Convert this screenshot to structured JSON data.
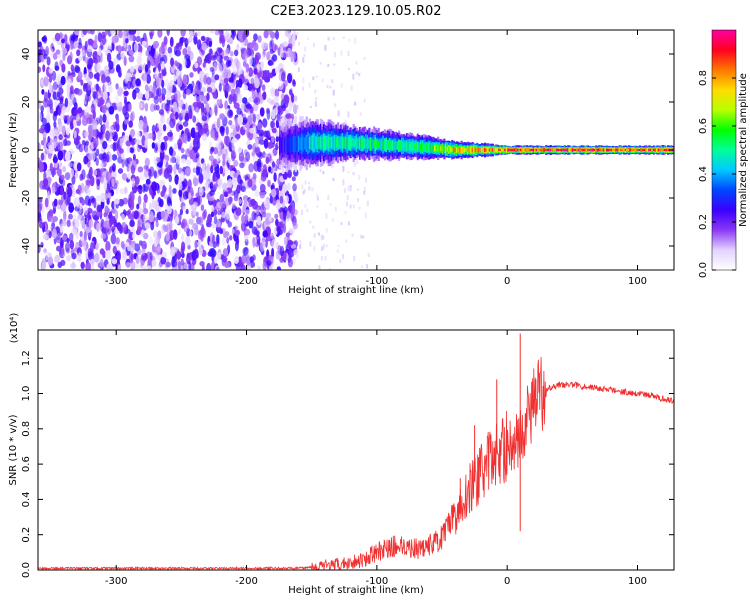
{
  "title": "C2E3.2023.129.10.05.R02",
  "chart_data": [
    {
      "type": "heatmap",
      "xlabel": "Height of straight line (km)",
      "ylabel": "Frequency (Hz)",
      "xlim": [
        -360,
        128
      ],
      "ylim": [
        -50,
        50
      ],
      "xticks": [
        -300,
        -200,
        -100,
        0,
        100
      ],
      "yticks": [
        -40,
        -20,
        0,
        20,
        40
      ],
      "colorbar": {
        "label": "Normalized spectral amplitude",
        "range": [
          0.0,
          1.0
        ],
        "ticks": [
          "0.0",
          "0.2",
          "0.4",
          "0.6",
          "0.8"
        ],
        "colors": [
          "#ffffff",
          "#e3d2ff",
          "#8a38f5",
          "#3a00ff",
          "#0046ff",
          "#00c8ff",
          "#00ff9a",
          "#00ff00",
          "#b8ff00",
          "#ffdc00",
          "#ff7800",
          "#ff0020",
          "#ff00a0"
        ]
      },
      "description_features": {
        "noise_region_x": [
          -360,
          -162
        ],
        "signal_band": [
          {
            "x": -175,
            "f_center": 2,
            "f_halfwidth": 9,
            "level": 0.22
          },
          {
            "x": -150,
            "f_center": 3,
            "f_halfwidth": 8,
            "level": 0.45
          },
          {
            "x": -120,
            "f_center": 3,
            "f_halfwidth": 6,
            "level": 0.5
          },
          {
            "x": -90,
            "f_center": 2,
            "f_halfwidth": 5,
            "level": 0.5
          },
          {
            "x": -60,
            "f_center": 1,
            "f_halfwidth": 4,
            "level": 0.55
          },
          {
            "x": -40,
            "f_center": 0,
            "f_halfwidth": 3,
            "level": 0.75
          },
          {
            "x": -10,
            "f_center": 0,
            "f_halfwidth": 2,
            "level": 0.8
          },
          {
            "x": 0,
            "f_center": 0,
            "f_halfwidth": 1.5,
            "level": 0.9
          },
          {
            "x": 60,
            "f_center": 0,
            "f_halfwidth": 1.5,
            "level": 0.9
          },
          {
            "x": 128,
            "f_center": 0,
            "f_halfwidth": 1.5,
            "level": 0.85
          }
        ]
      }
    },
    {
      "type": "line",
      "xlabel": "Height of straight line (km)",
      "ylabel": "SNR (10 * v/v)",
      "yscale_label": "(x10⁴)",
      "xlim": [
        -360,
        128
      ],
      "ylim": [
        0.0,
        1.36
      ],
      "xticks": [
        -300,
        -200,
        -100,
        0,
        100
      ],
      "yticks": [
        "0.0",
        "0.2",
        "0.4",
        "0.6",
        "0.8",
        "1.0",
        "1.2"
      ],
      "color": "#f03030",
      "x": [
        -360,
        -300,
        -250,
        -200,
        -160,
        -130,
        -110,
        -100,
        -90,
        -80,
        -70,
        -60,
        -50,
        -40,
        -30,
        -20,
        -10,
        0,
        10,
        20,
        30,
        40,
        50,
        60,
        70,
        80,
        90,
        100,
        110,
        120,
        128
      ],
      "y": [
        0.01,
        0.01,
        0.01,
        0.01,
        0.01,
        0.03,
        0.06,
        0.1,
        0.13,
        0.14,
        0.12,
        0.14,
        0.18,
        0.3,
        0.45,
        0.55,
        0.65,
        0.7,
        0.75,
        0.95,
        1.03,
        1.05,
        1.05,
        1.04,
        1.03,
        1.02,
        1.01,
        1.0,
        0.99,
        0.97,
        0.96
      ],
      "spikes": [
        {
          "x": -8,
          "y": 1.08
        },
        {
          "x": 10,
          "y": 1.34
        },
        {
          "x": 10,
          "y": 0.22
        },
        {
          "x": 22,
          "y": 1.08
        },
        {
          "x": -36,
          "y": 0.52
        },
        {
          "x": -25,
          "y": 0.82
        }
      ]
    }
  ]
}
